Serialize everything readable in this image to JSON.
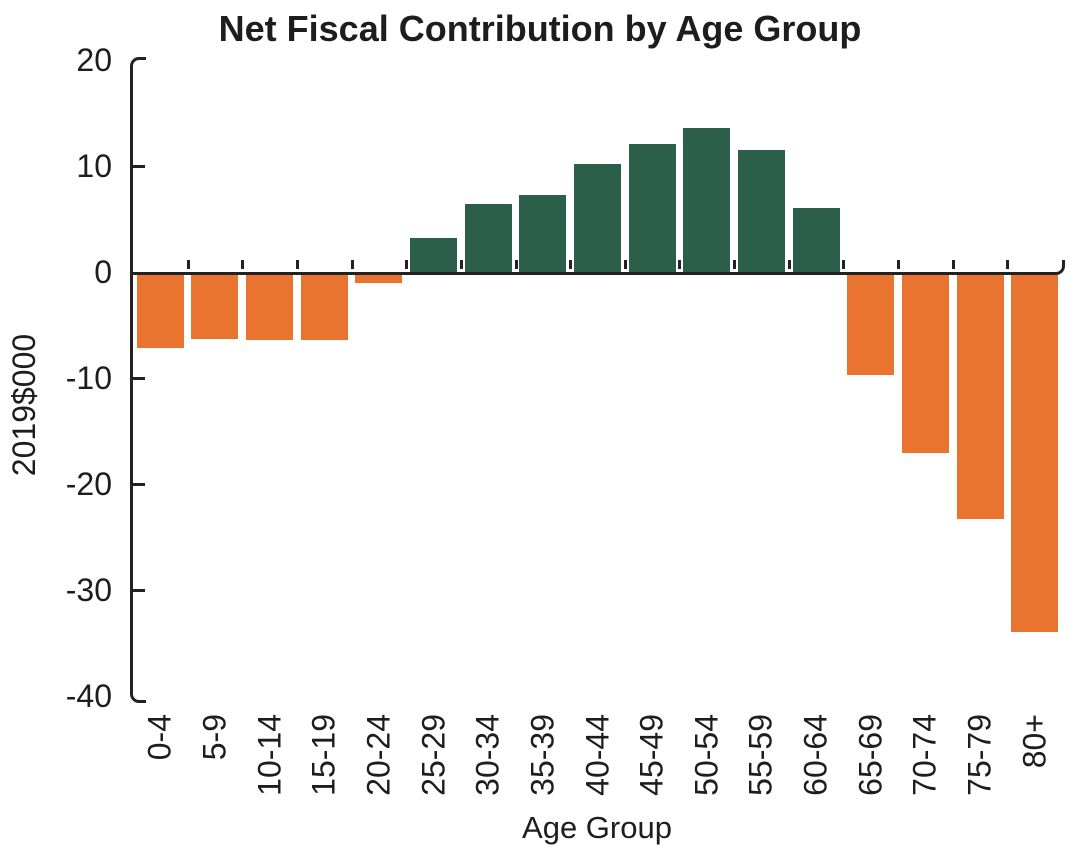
{
  "title": "Net Fiscal Contribution by Age Group",
  "chart_data": {
    "type": "bar",
    "title": "Net Fiscal Contribution by Age Group",
    "xlabel": "Age Group",
    "ylabel": "2019$000",
    "categories": [
      "0-4",
      "5-9",
      "10-14",
      "15-19",
      "20-24",
      "25-29",
      "30-34",
      "35-39",
      "40-44",
      "45-49",
      "50-54",
      "55-59",
      "60-64",
      "65-69",
      "70-74",
      "75-79",
      "80+"
    ],
    "values": [
      -7.2,
      -6.3,
      -6.4,
      -6.4,
      -1.0,
      3.2,
      6.4,
      7.3,
      10.2,
      12.1,
      13.6,
      11.5,
      6.0,
      -9.7,
      -17.1,
      -23.3,
      -34.0
    ],
    "ylim": [
      -40,
      20
    ],
    "yticks": [
      20,
      10,
      0,
      -10,
      -20,
      -30,
      -40
    ],
    "grid": false,
    "legend": false,
    "positive_color": "#2b5f49",
    "negative_color": "#e8742f",
    "axis_color": "#222222",
    "text_color": "#1d1d1d"
  }
}
